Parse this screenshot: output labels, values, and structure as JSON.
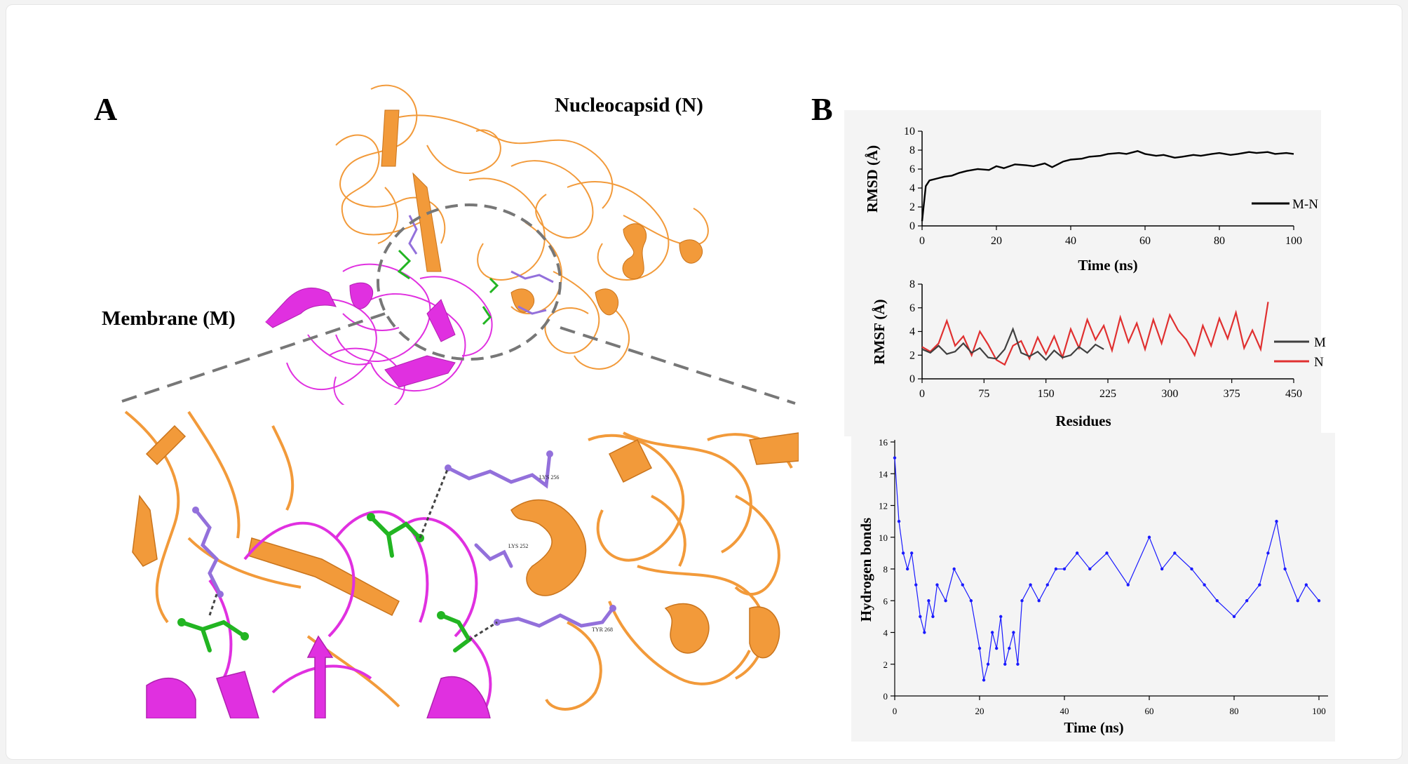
{
  "panel_a": {
    "letter": "A",
    "label_n": "Nucleocapsid (N)",
    "label_m": "Membrane (M)",
    "residue_labels": [
      "LYS 256",
      "LYS 252",
      "TYR 268"
    ],
    "colors": {
      "membrane": "#e030e0",
      "nucleocapsid": "#f29a3a",
      "m_residues": "#22b522",
      "n_residues": "#9370db"
    }
  },
  "panel_b": {
    "letter": "B"
  },
  "chart_data": [
    {
      "type": "line",
      "ylabel": "RMSD (Å)",
      "xlabel": "Time (ns)",
      "xlim": [
        0,
        100
      ],
      "ylim": [
        0,
        10
      ],
      "xticks": [
        "0",
        "20",
        "40",
        "60",
        "80",
        "100"
      ],
      "yticks": [
        "0",
        "2",
        "4",
        "6",
        "8",
        "10"
      ],
      "legend_position": "right",
      "series": [
        {
          "name": "M-N",
          "color": "#000000",
          "x": [
            0,
            1,
            2,
            4,
            6,
            8,
            10,
            12,
            15,
            18,
            20,
            22,
            25,
            28,
            30,
            33,
            35,
            38,
            40,
            43,
            45,
            48,
            50,
            53,
            55,
            58,
            60,
            63,
            65,
            68,
            70,
            73,
            75,
            78,
            80,
            83,
            85,
            88,
            90,
            93,
            95,
            98,
            100
          ],
          "y": [
            0.5,
            4.2,
            4.8,
            5.0,
            5.2,
            5.3,
            5.6,
            5.8,
            6.0,
            5.9,
            6.3,
            6.1,
            6.5,
            6.4,
            6.3,
            6.6,
            6.2,
            6.8,
            7.0,
            7.1,
            7.3,
            7.4,
            7.6,
            7.7,
            7.6,
            7.9,
            7.6,
            7.4,
            7.5,
            7.2,
            7.3,
            7.5,
            7.4,
            7.6,
            7.7,
            7.5,
            7.6,
            7.8,
            7.7,
            7.8,
            7.6,
            7.7,
            7.6
          ]
        }
      ]
    },
    {
      "type": "line",
      "ylabel": "RMSF (Å)",
      "xlabel": "Residues",
      "xlim": [
        0,
        450
      ],
      "ylim": [
        0,
        8
      ],
      "xticks": [
        "0",
        "75",
        "150",
        "225",
        "300",
        "375",
        "450"
      ],
      "yticks": [
        "0",
        "2",
        "4",
        "6",
        "8"
      ],
      "legend_position": "right",
      "series": [
        {
          "name": "M",
          "color": "#404040",
          "x": [
            0,
            10,
            20,
            30,
            40,
            50,
            60,
            70,
            80,
            90,
            100,
            110,
            120,
            130,
            140,
            150,
            160,
            170,
            180,
            190,
            200,
            210,
            220
          ],
          "y": [
            2.5,
            2.2,
            2.8,
            2.1,
            2.3,
            3.0,
            2.2,
            2.6,
            1.8,
            1.7,
            2.5,
            4.2,
            2.2,
            1.9,
            2.3,
            1.6,
            2.4,
            1.8,
            2.0,
            2.7,
            2.2,
            2.9,
            2.5
          ]
        },
        {
          "name": "N",
          "color": "#e03030",
          "x": [
            0,
            10,
            20,
            30,
            40,
            50,
            60,
            70,
            80,
            90,
            100,
            110,
            120,
            130,
            140,
            150,
            160,
            170,
            180,
            190,
            200,
            210,
            220,
            230,
            240,
            250,
            260,
            270,
            280,
            290,
            300,
            310,
            320,
            330,
            340,
            350,
            360,
            370,
            380,
            390,
            400,
            410,
            419
          ],
          "y": [
            2.7,
            2.3,
            3.0,
            4.9,
            2.8,
            3.6,
            2.0,
            4.0,
            2.9,
            1.6,
            1.2,
            2.8,
            3.2,
            1.7,
            3.5,
            2.1,
            3.6,
            1.8,
            4.2,
            2.6,
            5.0,
            3.3,
            4.5,
            2.4,
            5.2,
            3.1,
            4.7,
            2.5,
            5.0,
            3.0,
            5.4,
            4.1,
            3.3,
            2.0,
            4.5,
            2.8,
            5.1,
            3.4,
            5.6,
            2.6,
            4.1,
            2.5,
            6.5
          ]
        }
      ]
    },
    {
      "type": "line",
      "ylabel": "Hydrogen bonds",
      "xlabel": "Time (ns)",
      "xlim": [
        0,
        100
      ],
      "ylim": [
        0,
        16
      ],
      "xticks": [
        "0",
        "20",
        "40",
        "60",
        "80",
        "100"
      ],
      "yticks": [
        "0",
        "2",
        "4",
        "6",
        "8",
        "10",
        "12",
        "14",
        "16"
      ],
      "series": [
        {
          "name": "",
          "color": "#1a1aff",
          "x": [
            0,
            1,
            2,
            3,
            4,
            5,
            6,
            7,
            8,
            9,
            10,
            12,
            14,
            16,
            18,
            20,
            21,
            22,
            23,
            24,
            25,
            26,
            27,
            28,
            29,
            30,
            32,
            34,
            36,
            38,
            40,
            43,
            46,
            50,
            55,
            60,
            63,
            66,
            70,
            73,
            76,
            80,
            83,
            86,
            88,
            90,
            92,
            95,
            97,
            100
          ],
          "y": [
            15,
            11,
            9,
            8,
            9,
            7,
            5,
            4,
            6,
            5,
            7,
            6,
            8,
            7,
            6,
            3,
            1,
            2,
            4,
            3,
            5,
            2,
            3,
            4,
            2,
            6,
            7,
            6,
            7,
            8,
            8,
            9,
            8,
            9,
            7,
            10,
            8,
            9,
            8,
            7,
            6,
            5,
            6,
            7,
            9,
            11,
            8,
            6,
            7,
            6
          ]
        }
      ]
    }
  ]
}
